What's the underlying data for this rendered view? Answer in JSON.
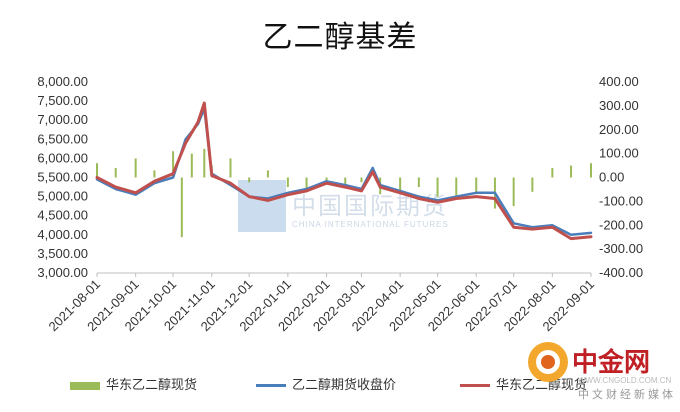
{
  "title": "乙二醇基差",
  "chart_data": {
    "type": "bar+line",
    "title": "乙二醇基差",
    "left_axis": {
      "min": 3000,
      "max": 8000,
      "step": 500,
      "ticks": [
        "3,000.00",
        "3,500.00",
        "4,000.00",
        "4,500.00",
        "5,000.00",
        "5,500.00",
        "6,000.00",
        "6,500.00",
        "7,000.00",
        "7,500.00",
        "8,000.00"
      ]
    },
    "right_axis": {
      "min": -400,
      "max": 400,
      "step": 100,
      "ticks": [
        "-400.00",
        "-300.00",
        "-200.00",
        "-100.00",
        "0.00",
        "100.00",
        "200.00",
        "300.00",
        "400.00"
      ]
    },
    "x_labels": [
      "2021-08-01",
      "2021-09-01",
      "2021-10-01",
      "2021-11-01",
      "2021-12-01",
      "2022-01-01",
      "2022-02-01",
      "2022-03-01",
      "2022-04-01",
      "2022-05-01",
      "2022-06-01",
      "2022-07-01",
      "2022-08-01",
      "2022-09-01"
    ],
    "series": [
      {
        "name": "华东乙二醇现货",
        "kind": "bar",
        "axis": "right",
        "color": "#9bbb59",
        "x": [
          "2021-08-01",
          "2021-08-16",
          "2021-09-01",
          "2021-09-16",
          "2021-10-01",
          "2021-10-08",
          "2021-10-16",
          "2021-10-26",
          "2021-11-01",
          "2021-11-16",
          "2021-12-01",
          "2021-12-16",
          "2022-01-01",
          "2022-01-16",
          "2022-02-01",
          "2022-02-16",
          "2022-03-01",
          "2022-03-16",
          "2022-04-01",
          "2022-04-16",
          "2022-05-01",
          "2022-05-16",
          "2022-06-01",
          "2022-06-16",
          "2022-07-01",
          "2022-07-16",
          "2022-08-01",
          "2022-08-16",
          "2022-09-01"
        ],
        "values": [
          60,
          40,
          80,
          30,
          110,
          -250,
          100,
          120,
          50,
          80,
          -20,
          30,
          -40,
          -60,
          -30,
          -40,
          -20,
          -70,
          -60,
          -40,
          -80,
          -90,
          -70,
          -130,
          -120,
          -60,
          40,
          50,
          60
        ]
      },
      {
        "name": "乙二醇期货收盘价",
        "kind": "line",
        "axis": "left",
        "color": "#4a7ebb",
        "x": [
          "2021-08-01",
          "2021-08-16",
          "2021-09-01",
          "2021-09-16",
          "2021-10-01",
          "2021-10-11",
          "2021-10-21",
          "2021-10-26",
          "2021-11-01",
          "2021-11-16",
          "2021-12-01",
          "2021-12-16",
          "2022-01-01",
          "2022-01-16",
          "2022-02-01",
          "2022-02-16",
          "2022-03-01",
          "2022-03-10",
          "2022-03-16",
          "2022-04-01",
          "2022-04-16",
          "2022-05-01",
          "2022-05-16",
          "2022-06-01",
          "2022-06-16",
          "2022-07-01",
          "2022-07-16",
          "2022-08-01",
          "2022-08-16",
          "2022-09-01"
        ],
        "values": [
          5450,
          5200,
          5050,
          5350,
          5500,
          6500,
          6900,
          7300,
          5600,
          5300,
          5000,
          4950,
          5100,
          5200,
          5400,
          5300,
          5200,
          5750,
          5300,
          5150,
          5000,
          4900,
          5000,
          5100,
          5100,
          4300,
          4200,
          4250,
          4000,
          4050
        ]
      },
      {
        "name": "华东乙二醇现货",
        "kind": "line",
        "axis": "left",
        "color": "#c0504d",
        "x": [
          "2021-08-01",
          "2021-08-16",
          "2021-09-01",
          "2021-09-16",
          "2021-10-01",
          "2021-10-11",
          "2021-10-21",
          "2021-10-26",
          "2021-11-01",
          "2021-11-16",
          "2021-12-01",
          "2021-12-16",
          "2022-01-01",
          "2022-01-16",
          "2022-02-01",
          "2022-02-16",
          "2022-03-01",
          "2022-03-10",
          "2022-03-16",
          "2022-04-01",
          "2022-04-16",
          "2022-05-01",
          "2022-05-16",
          "2022-06-01",
          "2022-06-16",
          "2022-07-01",
          "2022-07-16",
          "2022-08-01",
          "2022-08-16",
          "2022-09-01"
        ],
        "values": [
          5500,
          5250,
          5100,
          5400,
          5600,
          6400,
          6950,
          7450,
          5550,
          5350,
          5000,
          4900,
          5050,
          5150,
          5350,
          5250,
          5150,
          5650,
          5250,
          5100,
          4950,
          4850,
          4950,
          5000,
          4950,
          4200,
          4150,
          4200,
          3900,
          3950
        ]
      }
    ]
  },
  "legend": {
    "items": [
      "华东乙二醇现货",
      "乙二醇期货收盘价",
      "华东乙二醇现货"
    ]
  },
  "watermark": {
    "text": "中国国际期货",
    "sub": "CHINA INTERNATIONAL FUTURES"
  },
  "logo": {
    "name": "中金网",
    "sub": "中文财经新媒体",
    "url": "WWW.CNGOLD.COM.CN"
  }
}
